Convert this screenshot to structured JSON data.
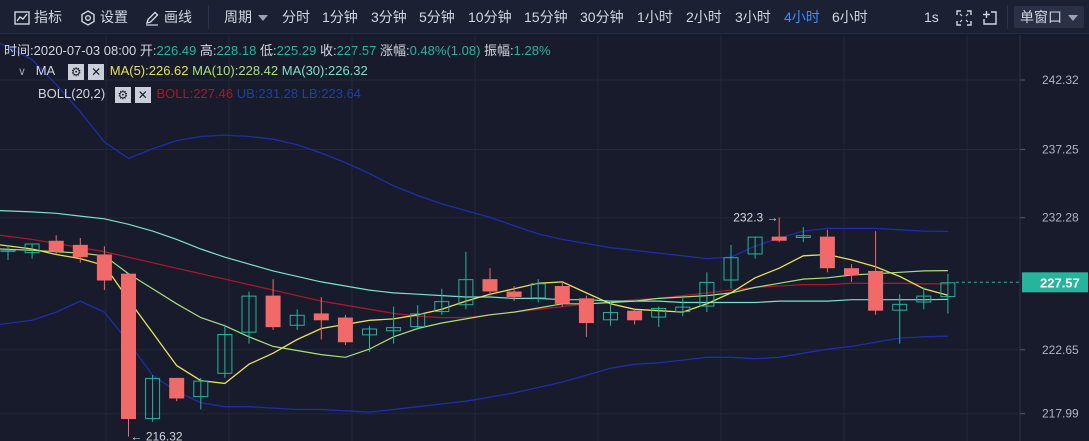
{
  "toolbar": {
    "indicator_label": "指标",
    "settings_label": "设置",
    "draw_label": "画线",
    "period_label": "周期",
    "periods": [
      "分时",
      "1分钟",
      "3分钟",
      "5分钟",
      "10分钟",
      "15分钟",
      "30分钟",
      "1小时",
      "2小时",
      "3小时",
      "4小时",
      "6小时"
    ],
    "active_period": "4小时",
    "interval_label": "1s",
    "window_label": "单窗口"
  },
  "info": {
    "time_label": "时间:",
    "time": "2020-07-03 08:00",
    "open_label": "开:",
    "open": "226.49",
    "high_label": "高:",
    "high": "228.18",
    "low_label": "低:",
    "low": "225.29",
    "close_label": "收:",
    "close": "227.57",
    "change_label": "涨幅:",
    "change": "0.48%(1.08)",
    "amp_label": "振幅:",
    "amp": "1.28%"
  },
  "legend": {
    "ma_name": "MA",
    "ma5": "MA(5):226.62",
    "ma10": "MA(10):228.42",
    "ma30": "MA(30):226.32",
    "boll_name": "BOLL(20,2)",
    "boll": "BOLL:227.46",
    "ub": "UB:231.28",
    "lb": "LB:223.64"
  },
  "colors": {
    "up": "#26b59c",
    "down": "#f06a6a",
    "ma5": "#e8e05b",
    "ma10": "#a6e07b",
    "ma30": "#7de0c8",
    "boll": "#a5192b",
    "ub": "#1d2ea8",
    "lb": "#1d2ea8",
    "price_tag": "#26b59c"
  },
  "chart_data": {
    "type": "candlestick",
    "y_ticks": [
      242.32,
      237.25,
      232.28,
      222.65,
      217.99
    ],
    "ylim": [
      216.0,
      245.6
    ],
    "current_price": 227.57,
    "high_annotation": "232.3",
    "low_annotation": "216.32",
    "candles": [
      {
        "o": 229.8,
        "h": 230.3,
        "l": 229.2,
        "c": 229.9
      },
      {
        "o": 229.7,
        "h": 230.4,
        "l": 229.3,
        "c": 230.4
      },
      {
        "o": 230.6,
        "h": 231.0,
        "l": 229.6,
        "c": 229.8
      },
      {
        "o": 230.3,
        "h": 230.8,
        "l": 229.0,
        "c": 229.4
      },
      {
        "o": 229.6,
        "h": 230.2,
        "l": 227.0,
        "c": 227.7
      },
      {
        "o": 228.2,
        "h": 228.2,
        "l": 216.32,
        "c": 217.6
      },
      {
        "o": 217.6,
        "h": 220.8,
        "l": 217.4,
        "c": 220.6
      },
      {
        "o": 220.6,
        "h": 220.6,
        "l": 218.9,
        "c": 219.1
      },
      {
        "o": 219.2,
        "h": 220.6,
        "l": 218.3,
        "c": 220.4
      },
      {
        "o": 220.9,
        "h": 224.5,
        "l": 220.6,
        "c": 223.8
      },
      {
        "o": 223.9,
        "h": 226.9,
        "l": 223.1,
        "c": 226.6
      },
      {
        "o": 226.6,
        "h": 227.8,
        "l": 224.1,
        "c": 224.3
      },
      {
        "o": 224.4,
        "h": 225.6,
        "l": 224.1,
        "c": 225.2
      },
      {
        "o": 225.3,
        "h": 226.5,
        "l": 223.4,
        "c": 224.8
      },
      {
        "o": 225.0,
        "h": 225.2,
        "l": 223.0,
        "c": 223.2
      },
      {
        "o": 223.7,
        "h": 224.4,
        "l": 222.5,
        "c": 224.2
      },
      {
        "o": 224.0,
        "h": 225.8,
        "l": 223.1,
        "c": 224.3
      },
      {
        "o": 224.3,
        "h": 225.9,
        "l": 224.1,
        "c": 225.3
      },
      {
        "o": 225.4,
        "h": 227.1,
        "l": 225.2,
        "c": 226.2
      },
      {
        "o": 225.9,
        "h": 229.8,
        "l": 225.6,
        "c": 227.8
      },
      {
        "o": 227.8,
        "h": 228.6,
        "l": 226.6,
        "c": 226.9
      },
      {
        "o": 226.9,
        "h": 227.3,
        "l": 226.2,
        "c": 226.5
      },
      {
        "o": 226.4,
        "h": 227.8,
        "l": 226.1,
        "c": 227.5
      },
      {
        "o": 227.3,
        "h": 227.6,
        "l": 225.8,
        "c": 226.0
      },
      {
        "o": 226.4,
        "h": 226.6,
        "l": 223.6,
        "c": 224.6
      },
      {
        "o": 224.8,
        "h": 226.2,
        "l": 224.4,
        "c": 225.4
      },
      {
        "o": 225.5,
        "h": 225.6,
        "l": 224.5,
        "c": 224.8
      },
      {
        "o": 225.0,
        "h": 225.8,
        "l": 224.3,
        "c": 225.7
      },
      {
        "o": 225.4,
        "h": 226.4,
        "l": 225.1,
        "c": 225.8
      },
      {
        "o": 225.8,
        "h": 228.3,
        "l": 225.4,
        "c": 227.6
      },
      {
        "o": 227.7,
        "h": 230.3,
        "l": 227.1,
        "c": 229.4
      },
      {
        "o": 229.6,
        "h": 230.9,
        "l": 229.3,
        "c": 230.9
      },
      {
        "o": 230.9,
        "h": 232.3,
        "l": 230.5,
        "c": 230.6
      },
      {
        "o": 230.8,
        "h": 231.6,
        "l": 230.5,
        "c": 231.0
      },
      {
        "o": 230.9,
        "h": 231.4,
        "l": 228.3,
        "c": 228.6
      },
      {
        "o": 228.6,
        "h": 228.9,
        "l": 227.6,
        "c": 228.1
      },
      {
        "o": 228.4,
        "h": 231.3,
        "l": 225.2,
        "c": 225.5
      },
      {
        "o": 225.5,
        "h": 226.7,
        "l": 223.1,
        "c": 226.0
      },
      {
        "o": 226.1,
        "h": 227.2,
        "l": 225.6,
        "c": 226.6
      },
      {
        "o": 226.49,
        "h": 228.18,
        "l": 225.29,
        "c": 227.57
      }
    ],
    "ma5": [
      230.3,
      230.0,
      229.6,
      229.3,
      228.8,
      226.3,
      223.9,
      221.5,
      220.4,
      220.2,
      221.6,
      222.4,
      223.4,
      224.2,
      224.5,
      224.8,
      224.9,
      225.2,
      225.6,
      226.2,
      226.7,
      227.1,
      227.5,
      227.6,
      226.8,
      226.0,
      225.6,
      225.5,
      225.4,
      226.0,
      226.8,
      227.9,
      228.6,
      229.5,
      229.6,
      229.2,
      228.7,
      228.0,
      227.1,
      226.62
    ],
    "ma10": [
      230.0,
      229.9,
      229.8,
      229.7,
      229.5,
      228.2,
      227.1,
      226.0,
      225.0,
      224.4,
      223.6,
      222.9,
      222.6,
      222.3,
      222.1,
      222.7,
      223.6,
      224.2,
      224.6,
      224.9,
      225.2,
      225.4,
      225.7,
      226.0,
      226.0,
      226.1,
      226.2,
      226.4,
      226.5,
      226.6,
      226.8,
      227.2,
      227.5,
      227.8,
      227.9,
      228.1,
      228.2,
      228.3,
      228.4,
      228.42
    ],
    "ma30": [
      232.8,
      232.7,
      232.6,
      232.4,
      232.2,
      231.8,
      231.3,
      230.7,
      230.0,
      229.4,
      228.9,
      228.4,
      228.0,
      227.6,
      227.3,
      227.0,
      226.8,
      226.7,
      226.6,
      226.5,
      226.5,
      226.4,
      226.4,
      226.3,
      226.3,
      226.2,
      226.2,
      226.2,
      226.1,
      226.1,
      226.1,
      226.1,
      226.2,
      226.2,
      226.2,
      226.3,
      226.3,
      226.3,
      226.3,
      226.32
    ],
    "boll": [
      231.0,
      230.7,
      230.4,
      230.1,
      229.8,
      229.4,
      229.0,
      228.6,
      228.2,
      227.8,
      227.4,
      227.0,
      226.6,
      226.2,
      225.9,
      225.6,
      225.3,
      225.1,
      225.0,
      225.0,
      225.2,
      225.4,
      225.6,
      225.8,
      226.0,
      226.1,
      226.3,
      226.4,
      226.6,
      226.8,
      227.0,
      227.2,
      227.3,
      227.4,
      227.4,
      227.5,
      227.5,
      227.5,
      227.46,
      227.46
    ],
    "ub": [
      245.0,
      243.8,
      242.0,
      240.0,
      237.8,
      236.6,
      237.3,
      237.9,
      238.2,
      238.3,
      238.2,
      238.0,
      237.6,
      237.0,
      236.3,
      235.5,
      234.6,
      233.9,
      233.3,
      232.8,
      232.3,
      231.7,
      231.1,
      230.7,
      230.4,
      230.1,
      229.9,
      229.7,
      229.5,
      229.3,
      229.4,
      230.2,
      230.8,
      231.3,
      231.5,
      231.5,
      231.5,
      231.4,
      231.3,
      231.28
    ],
    "lb": [
      224.5,
      224.8,
      225.4,
      226.2,
      225.4,
      223.2,
      220.8,
      219.6,
      218.8,
      218.5,
      218.5,
      218.4,
      218.3,
      218.3,
      218.2,
      218.1,
      218.3,
      218.5,
      218.7,
      218.9,
      219.2,
      219.5,
      219.9,
      220.3,
      220.8,
      221.3,
      221.6,
      221.7,
      221.9,
      222.1,
      222.1,
      222.0,
      222.1,
      222.4,
      222.7,
      222.9,
      223.2,
      223.5,
      223.6,
      223.64
    ]
  }
}
